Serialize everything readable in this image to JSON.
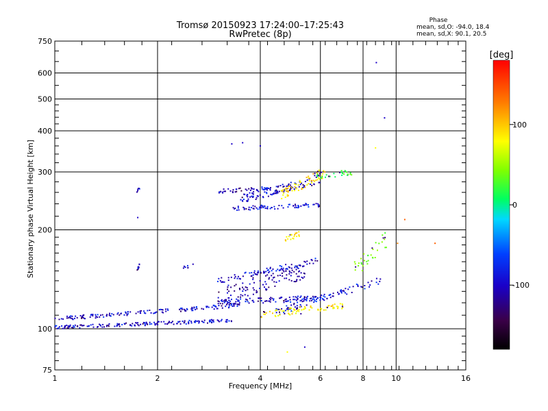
{
  "header": {
    "title_line1": "Tromsø 20150923 17:24:00–17:25:43",
    "title_line2": "RwPretec (8p)"
  },
  "phase_box": {
    "title": "Phase",
    "line_o": "mean, sd,O: -94.0, 18.4",
    "line_x": "mean, sd,X:  90.1, 20.5"
  },
  "chart_data": {
    "type": "scatter",
    "xlabel": "Frequency [MHz]",
    "ylabel": "Stationary phase Virtual Height [km]",
    "x_scale": "log",
    "y_scale": "log",
    "xlim": [
      1,
      16
    ],
    "ylim": [
      75,
      750
    ],
    "x_ticks": [
      1,
      2,
      4,
      6,
      8,
      10,
      16
    ],
    "y_ticks": [
      75,
      100,
      200,
      300,
      400,
      500,
      600,
      750
    ],
    "grid": true,
    "colorbar": {
      "label": "[deg]",
      "ticks": [
        100,
        0,
        -100
      ],
      "range": [
        -180,
        180
      ]
    },
    "clusters": [
      {
        "name": "E trace lower",
        "f_start": 1.0,
        "f_end": 3.3,
        "h_start": 101,
        "h_end": 106,
        "spread": 0.012,
        "n": 170,
        "phase": -100
      },
      {
        "name": "E trace upper",
        "f_start": 1.0,
        "f_end": 3.5,
        "h_start": 107,
        "h_end": 118,
        "spread": 0.014,
        "n": 150,
        "phase": -100
      },
      {
        "name": "F trace 1",
        "f_start": 3.0,
        "f_end": 5.9,
        "h_start": 120,
        "h_end": 124,
        "spread": 0.02,
        "n": 110,
        "phase": -100
      },
      {
        "name": "F trace 2",
        "f_start": 4.4,
        "f_end": 9.4,
        "h_start": 112,
        "h_end": 142,
        "spread": 0.025,
        "n": 90,
        "phase": -95
      },
      {
        "name": "F yellow",
        "f_start": 4.0,
        "f_end": 7.0,
        "h_start": 110,
        "h_end": 118,
        "spread": 0.025,
        "n": 80,
        "phase": 105
      },
      {
        "name": "F2 upward",
        "f_start": 3.0,
        "f_end": 5.9,
        "h_start": 140,
        "h_end": 161,
        "spread": 0.02,
        "n": 90,
        "phase": -100
      },
      {
        "name": "scatter mid",
        "f_start": 3.0,
        "f_end": 5.4,
        "h_start": 125,
        "h_end": 150,
        "spread": 0.06,
        "n": 110,
        "phase": -110
      },
      {
        "name": "upper F",
        "f_start": 3.5,
        "f_end": 6.0,
        "h_start": 248,
        "h_end": 285,
        "spread": 0.03,
        "n": 110,
        "phase": -100
      },
      {
        "name": "upper F yellow",
        "f_start": 4.6,
        "f_end": 6.2,
        "h_start": 255,
        "h_end": 300,
        "spread": 0.035,
        "n": 70,
        "phase": 110
      },
      {
        "name": "mid 235",
        "f_start": 3.3,
        "f_end": 6.0,
        "h_start": 232,
        "h_end": 238,
        "spread": 0.015,
        "n": 80,
        "phase": -100
      },
      {
        "name": "upper 260",
        "f_start": 3.0,
        "f_end": 4.3,
        "h_start": 262,
        "h_end": 268,
        "spread": 0.015,
        "n": 40,
        "phase": -100
      },
      {
        "name": "upper right 295",
        "f_start": 5.8,
        "f_end": 7.5,
        "h_start": 290,
        "h_end": 300,
        "spread": 0.02,
        "n": 30,
        "phase": 20
      },
      {
        "name": "yellow 190",
        "f_start": 4.7,
        "f_end": 5.3,
        "h_start": 188,
        "h_end": 195,
        "spread": 0.02,
        "n": 20,
        "phase": 110
      },
      {
        "name": "right scatter",
        "f_start": 7.5,
        "f_end": 9.5,
        "h_start": 150,
        "h_end": 190,
        "spread": 0.06,
        "n": 35,
        "phase": 40
      },
      {
        "name": "1.75 MHz spur",
        "f_start": 1.74,
        "f_end": 1.77,
        "h_start": 150,
        "h_end": 156,
        "spread": 0.01,
        "n": 10,
        "phase": -100
      },
      {
        "name": "1.75 MHz upper",
        "f_start": 1.74,
        "f_end": 1.78,
        "h_start": 262,
        "h_end": 268,
        "spread": 0.01,
        "n": 6,
        "phase": -100
      },
      {
        "name": "2.4 MHz spur",
        "f_start": 2.35,
        "f_end": 2.55,
        "h_start": 153,
        "h_end": 156,
        "spread": 0.01,
        "n": 8,
        "phase": -100
      }
    ],
    "points": [
      {
        "f": 8.75,
        "h": 645,
        "phase": -100
      },
      {
        "f": 9.25,
        "h": 438,
        "phase": -100
      },
      {
        "f": 8.7,
        "h": 355,
        "phase": 100
      },
      {
        "f": 10.6,
        "h": 215,
        "phase": 150
      },
      {
        "f": 13.0,
        "h": 182,
        "phase": 150
      },
      {
        "f": 10.1,
        "h": 182,
        "phase": 140
      },
      {
        "f": 3.3,
        "h": 365,
        "phase": -100
      },
      {
        "f": 3.55,
        "h": 368,
        "phase": -100
      },
      {
        "f": 4.0,
        "h": 360,
        "phase": -100
      },
      {
        "f": 1.75,
        "h": 218,
        "phase": -100
      },
      {
        "f": 4.8,
        "h": 85,
        "phase": 100
      },
      {
        "f": 5.4,
        "h": 88,
        "phase": -100
      }
    ]
  }
}
